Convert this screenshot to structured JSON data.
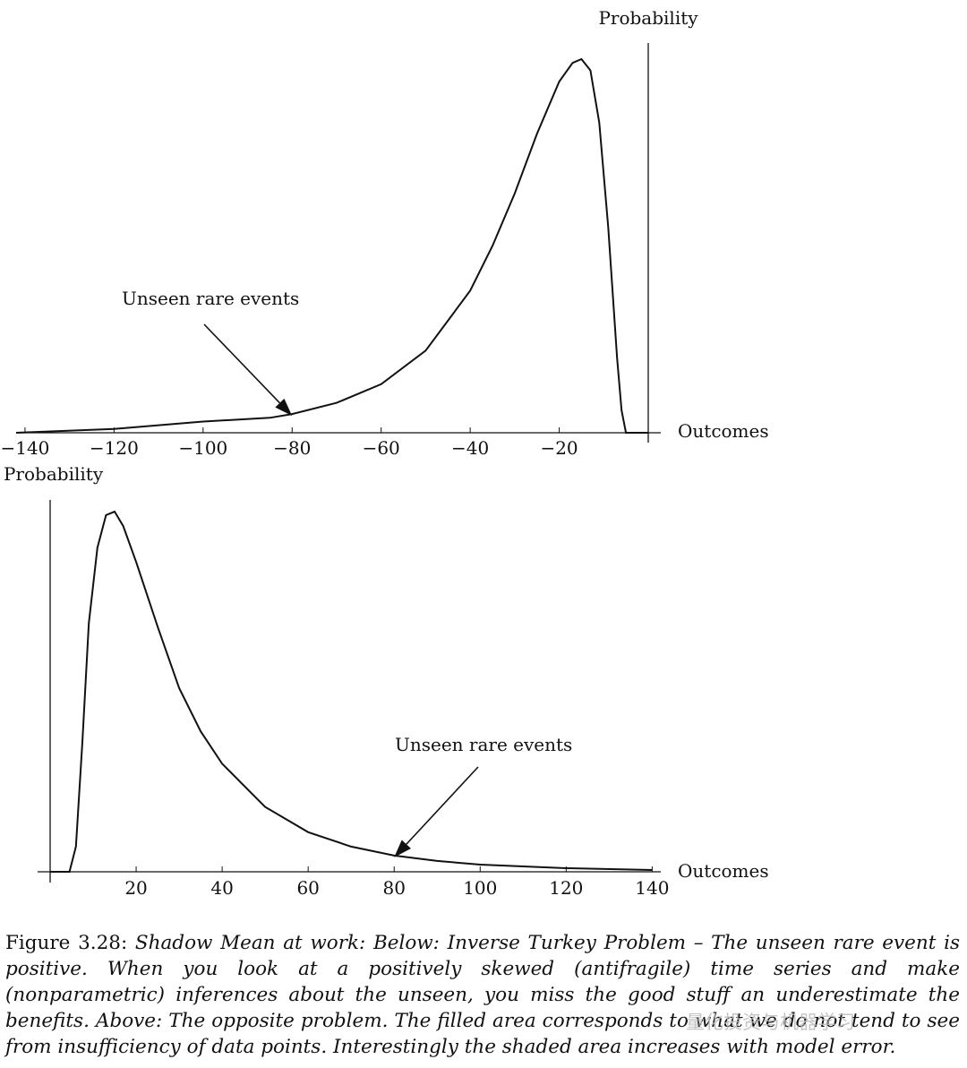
{
  "chart_data": [
    {
      "type": "line",
      "panel": "top",
      "xlabel": "Outcomes",
      "ylabel": "Probability",
      "xlim": [
        -142,
        0
      ],
      "xticks": [
        -140,
        -120,
        -100,
        -80,
        -60,
        -40,
        -20
      ],
      "tick_labels": [
        "−140",
        "−120",
        "−100",
        "−80",
        "−60",
        "−40",
        "−20"
      ],
      "grid": false,
      "series": [
        {
          "x": [
            -142,
            -120,
            -100,
            -85,
            -80,
            -70,
            -60,
            -50,
            -40,
            -35,
            -30,
            -25,
            -20,
            -17,
            -15,
            -13,
            -11,
            -9,
            -7,
            -6,
            -5,
            0
          ],
          "y": [
            0.0,
            0.01,
            0.03,
            0.04,
            0.05,
            0.08,
            0.13,
            0.22,
            0.38,
            0.5,
            0.64,
            0.8,
            0.94,
            0.99,
            1.0,
            0.97,
            0.83,
            0.55,
            0.2,
            0.06,
            0.0,
            0.0
          ]
        }
      ],
      "annotation": {
        "text": "Unseen rare events",
        "x": -80
      }
    },
    {
      "type": "line",
      "panel": "bottom",
      "xlabel": "Outcomes",
      "ylabel": "Probability",
      "xlim": [
        0,
        142
      ],
      "xticks": [
        20,
        40,
        60,
        80,
        100,
        120,
        140
      ],
      "tick_labels": [
        "20",
        "40",
        "60",
        "80",
        "100",
        "120",
        "140"
      ],
      "grid": false,
      "series": [
        {
          "x": [
            0,
            4.5,
            6,
            7.5,
            9,
            11,
            13,
            15,
            17,
            20,
            25,
            30,
            35,
            40,
            50,
            60,
            70,
            80,
            90,
            100,
            120,
            140
          ],
          "y": [
            0.0,
            0.0,
            0.07,
            0.36,
            0.69,
            0.9,
            0.99,
            1.0,
            0.96,
            0.86,
            0.68,
            0.51,
            0.39,
            0.3,
            0.18,
            0.11,
            0.07,
            0.045,
            0.03,
            0.02,
            0.01,
            0.005
          ]
        }
      ],
      "annotation": {
        "text": "Unseen rare events",
        "x": 80
      }
    }
  ],
  "caption": {
    "label": "Figure 3.28: ",
    "text": "Shadow Mean at work: Below: Inverse Turkey Problem – The unseen rare event is positive. When you look at a positively skewed (antifragile) time series and make (nonparametric) inferences about the unseen, you miss the good stuff an underestimate the benefits. Above: The opposite problem. The filled area corresponds to what we do not tend to see from insufficiency of data points. Interestingly the shaded area increases with model error."
  },
  "watermark": "量化投资与机器学习"
}
